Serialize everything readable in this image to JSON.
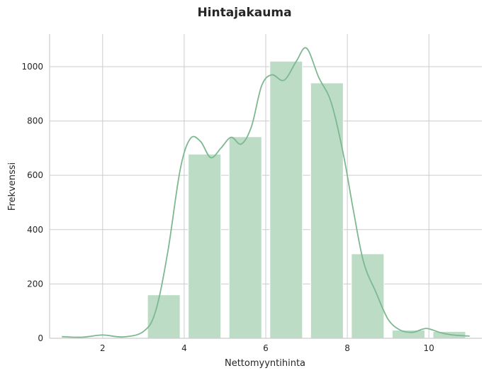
{
  "chart_data": {
    "type": "bar",
    "title": "Hintajakauma",
    "xlabel": "Nettomyyntihinta",
    "ylabel": "Frekvenssi",
    "xlim": [
      0.7,
      11.3
    ],
    "ylim": [
      0,
      1120
    ],
    "x_ticks": [
      2,
      4,
      6,
      8,
      10
    ],
    "y_ticks": [
      0,
      200,
      400,
      600,
      800,
      1000
    ],
    "grid": true,
    "bins": [
      {
        "x0": 3.1,
        "x1": 3.9,
        "value": 160
      },
      {
        "x0": 4.1,
        "x1": 4.9,
        "value": 678
      },
      {
        "x0": 5.1,
        "x1": 5.9,
        "value": 742
      },
      {
        "x0": 6.1,
        "x1": 6.9,
        "value": 1020
      },
      {
        "x0": 7.1,
        "x1": 7.9,
        "value": 940
      },
      {
        "x0": 8.1,
        "x1": 8.9,
        "value": 311
      },
      {
        "x0": 9.1,
        "x1": 9.9,
        "value": 30
      },
      {
        "x0": 10.1,
        "x1": 10.9,
        "value": 25
      }
    ],
    "kde": {
      "x": [
        1.0,
        1.5,
        2.0,
        2.5,
        3.0,
        3.3,
        3.6,
        3.9,
        4.15,
        4.4,
        4.65,
        4.9,
        5.15,
        5.4,
        5.65,
        5.9,
        6.15,
        6.45,
        6.75,
        7.0,
        7.3,
        7.6,
        7.9,
        8.15,
        8.4,
        8.7,
        9.0,
        9.3,
        9.6,
        9.85,
        10.0,
        10.3,
        10.6,
        11.0
      ],
      "y": [
        6,
        4,
        12,
        5,
        25,
        100,
        320,
        620,
        735,
        725,
        665,
        700,
        740,
        715,
        780,
        930,
        970,
        950,
        1020,
        1068,
        960,
        870,
        680,
        470,
        280,
        170,
        70,
        30,
        22,
        34,
        35,
        20,
        12,
        8
      ]
    },
    "colors": {
      "bar": "#bcdcc6",
      "bar_edge": "#ffffff",
      "kde": "#7db891",
      "grid": "#cccccc"
    }
  }
}
